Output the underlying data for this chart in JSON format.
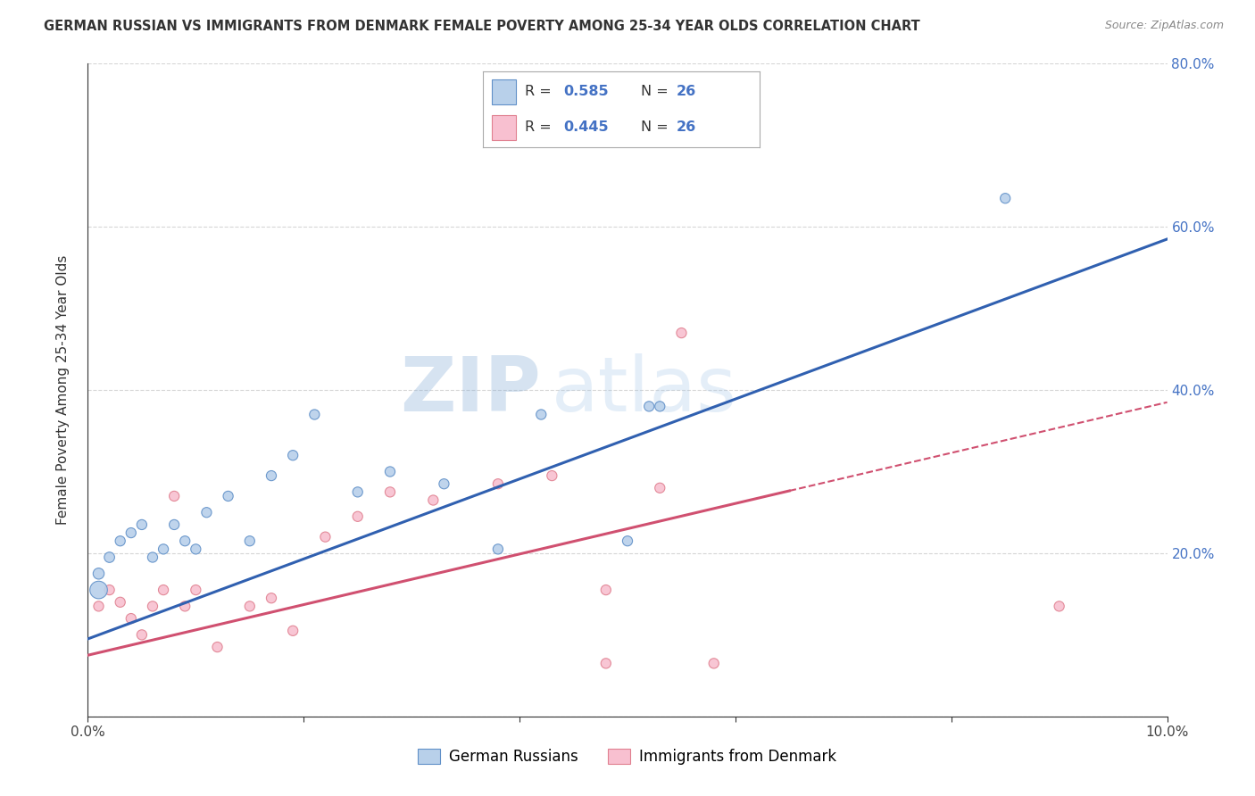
{
  "title": "GERMAN RUSSIAN VS IMMIGRANTS FROM DENMARK FEMALE POVERTY AMONG 25-34 YEAR OLDS CORRELATION CHART",
  "source": "Source: ZipAtlas.com",
  "ylabel": "Female Poverty Among 25-34 Year Olds",
  "xlim": [
    0.0,
    0.1
  ],
  "ylim": [
    0.0,
    0.8
  ],
  "xticks": [
    0.0,
    0.02,
    0.04,
    0.06,
    0.08,
    0.1
  ],
  "xtick_labels": [
    "0.0%",
    "",
    "",
    "",
    "",
    "10.0%"
  ],
  "yticks_right": [
    0.0,
    0.2,
    0.4,
    0.6,
    0.8
  ],
  "ytick_right_labels": [
    "",
    "20.0%",
    "40.0%",
    "60.0%",
    "80.0%"
  ],
  "series1_name": "German Russians",
  "series1_color": "#b8d0ea",
  "series1_edge_color": "#6090c8",
  "series1_line_color": "#3060b0",
  "series1_R": 0.585,
  "series1_N": 26,
  "series2_name": "Immigrants from Denmark",
  "series2_color": "#f8c0d0",
  "series2_edge_color": "#e08090",
  "series2_line_color": "#d05070",
  "series2_R": 0.445,
  "series2_N": 26,
  "watermark_zip": "ZIP",
  "watermark_atlas": "atlas",
  "background_color": "#ffffff",
  "grid_color": "#cccccc",
  "series1_x": [
    0.001,
    0.001,
    0.002,
    0.003,
    0.004,
    0.005,
    0.006,
    0.007,
    0.008,
    0.009,
    0.01,
    0.011,
    0.013,
    0.015,
    0.017,
    0.019,
    0.021,
    0.025,
    0.028,
    0.033,
    0.038,
    0.042,
    0.05,
    0.052,
    0.085,
    0.053
  ],
  "series1_y": [
    0.155,
    0.175,
    0.195,
    0.215,
    0.225,
    0.235,
    0.195,
    0.205,
    0.235,
    0.215,
    0.205,
    0.25,
    0.27,
    0.215,
    0.295,
    0.32,
    0.37,
    0.275,
    0.3,
    0.285,
    0.205,
    0.37,
    0.215,
    0.38,
    0.635,
    0.38
  ],
  "series1_size": [
    200,
    80,
    70,
    65,
    65,
    65,
    65,
    65,
    65,
    65,
    65,
    65,
    65,
    65,
    65,
    65,
    65,
    65,
    65,
    65,
    65,
    65,
    65,
    65,
    65,
    65
  ],
  "series2_x": [
    0.001,
    0.002,
    0.003,
    0.004,
    0.005,
    0.006,
    0.007,
    0.008,
    0.009,
    0.01,
    0.012,
    0.015,
    0.017,
    0.019,
    0.022,
    0.025,
    0.028,
    0.032,
    0.038,
    0.043,
    0.048,
    0.053,
    0.058,
    0.055,
    0.09,
    0.048
  ],
  "series2_y": [
    0.135,
    0.155,
    0.14,
    0.12,
    0.1,
    0.135,
    0.155,
    0.27,
    0.135,
    0.155,
    0.085,
    0.135,
    0.145,
    0.105,
    0.22,
    0.245,
    0.275,
    0.265,
    0.285,
    0.295,
    0.155,
    0.28,
    0.065,
    0.47,
    0.135,
    0.065
  ],
  "series2_size": [
    65,
    65,
    65,
    65,
    65,
    65,
    65,
    65,
    65,
    65,
    65,
    65,
    65,
    65,
    65,
    65,
    65,
    65,
    65,
    65,
    65,
    65,
    65,
    65,
    65,
    65
  ],
  "trend1_x0": 0.0,
  "trend1_y0": 0.095,
  "trend1_x1": 0.1,
  "trend1_y1": 0.585,
  "trend2_x0": 0.0,
  "trend2_y0": 0.075,
  "trend2_x1": 0.1,
  "trend2_y1": 0.385
}
